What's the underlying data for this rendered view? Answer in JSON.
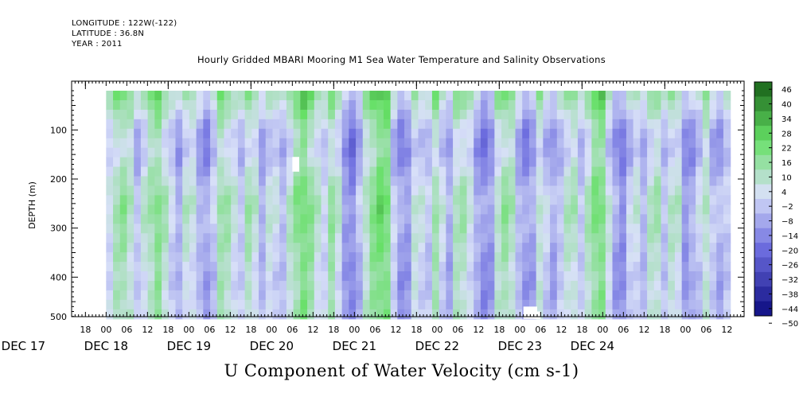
{
  "header": {
    "longitude": "LONGITUDE : 122W(-122)",
    "latitude": "LATITUDE : 36.8N",
    "year": "YEAR : 2011",
    "title": "Hourly Gridded MBARI Mooring M1 Sea Water Temperature and Salinity Observations"
  },
  "colors": {
    "strong_negative": "#0b0b80",
    "negative": "#6f6fe0",
    "near_zero": "#d8e0f8",
    "positive": "#66e066",
    "strong_positive": "#0a4a0a",
    "missing": "#ffffff"
  },
  "chart_data": {
    "type": "heatmap",
    "title": "U Component of Water Velocity (cm s-1)",
    "ylabel": "DEPTH (m)",
    "ylim": [
      500,
      20
    ],
    "y_inverted": true,
    "y_ticks": [
      100,
      200,
      300,
      400,
      500
    ],
    "x_hour_labels": [
      "18",
      "00",
      "06",
      "12",
      "18",
      "00",
      "06",
      "12",
      "18",
      "00",
      "06",
      "12",
      "18",
      "00",
      "06",
      "12",
      "18",
      "00",
      "06",
      "12",
      "18",
      "00",
      "06",
      "12",
      "18",
      "00",
      "06",
      "12",
      "18",
      "00",
      "06",
      "12"
    ],
    "x_hour_positions_h": [
      -6,
      0,
      6,
      12,
      18,
      24,
      30,
      36,
      42,
      48,
      54,
      60,
      66,
      72,
      78,
      84,
      90,
      96,
      102,
      108,
      114,
      120,
      126,
      132,
      138,
      144,
      150,
      156,
      162,
      168,
      174,
      180
    ],
    "x_day_labels": [
      "DEC 17",
      "DEC 18",
      "DEC 19",
      "DEC 20",
      "DEC 21",
      "DEC 22",
      "DEC 23",
      "DEC 24"
    ],
    "x_day_positions_h": [
      -24,
      0,
      24,
      48,
      72,
      96,
      120,
      141
    ],
    "xlim_hours_from_dec18": [
      -10,
      185
    ],
    "data_range_hours": [
      0,
      181
    ],
    "depth_range_m": [
      20,
      485
    ],
    "colorbar_levels": [
      46,
      40,
      34,
      28,
      22,
      16,
      10,
      4,
      -2,
      -8,
      -14,
      -20,
      -26,
      -32,
      -38,
      -44,
      -50
    ],
    "colorbar_range": [
      -50,
      50
    ],
    "time_bands": [
      {
        "t": 0,
        "u": -4
      },
      {
        "t": 3,
        "u": 8
      },
      {
        "t": 6,
        "u": 12
      },
      {
        "t": 9,
        "u": -6
      },
      {
        "t": 12,
        "u": 6
      },
      {
        "t": 15,
        "u": 14
      },
      {
        "t": 18,
        "u": 2
      },
      {
        "t": 21,
        "u": -10
      },
      {
        "t": 24,
        "u": 8
      },
      {
        "t": 27,
        "u": -8
      },
      {
        "t": 30,
        "u": -14
      },
      {
        "t": 33,
        "u": 10
      },
      {
        "t": 36,
        "u": 6
      },
      {
        "t": 39,
        "u": -6
      },
      {
        "t": 42,
        "u": 12
      },
      {
        "t": 45,
        "u": -10
      },
      {
        "t": 48,
        "u": 4
      },
      {
        "t": 51,
        "u": -8
      },
      {
        "t": 54,
        "u": 8
      },
      {
        "t": 57,
        "u": 18
      },
      {
        "t": 60,
        "u": 10
      },
      {
        "t": 63,
        "u": -4
      },
      {
        "t": 66,
        "u": 14
      },
      {
        "t": 69,
        "u": -12
      },
      {
        "t": 72,
        "u": -18
      },
      {
        "t": 75,
        "u": 4
      },
      {
        "t": 78,
        "u": 16
      },
      {
        "t": 81,
        "u": 22
      },
      {
        "t": 84,
        "u": -10
      },
      {
        "t": 87,
        "u": -16
      },
      {
        "t": 90,
        "u": 6
      },
      {
        "t": 93,
        "u": -8
      },
      {
        "t": 96,
        "u": 12
      },
      {
        "t": 99,
        "u": -14
      },
      {
        "t": 102,
        "u": 10
      },
      {
        "t": 105,
        "u": 4
      },
      {
        "t": 108,
        "u": -12
      },
      {
        "t": 111,
        "u": -18
      },
      {
        "t": 114,
        "u": 8
      },
      {
        "t": 117,
        "u": 12
      },
      {
        "t": 120,
        "u": -10
      },
      {
        "t": 123,
        "u": -16
      },
      {
        "t": 126,
        "u": 6
      },
      {
        "t": 129,
        "u": -12
      },
      {
        "t": 132,
        "u": -4
      },
      {
        "t": 135,
        "u": 10
      },
      {
        "t": 138,
        "u": -6
      },
      {
        "t": 141,
        "u": 14
      },
      {
        "t": 144,
        "u": 16
      },
      {
        "t": 147,
        "u": -10
      },
      {
        "t": 150,
        "u": -16
      },
      {
        "t": 153,
        "u": 4
      },
      {
        "t": 156,
        "u": -8
      },
      {
        "t": 159,
        "u": 12
      },
      {
        "t": 162,
        "u": -6
      },
      {
        "t": 165,
        "u": 10
      },
      {
        "t": 168,
        "u": -14
      },
      {
        "t": 171,
        "u": -8
      },
      {
        "t": 174,
        "u": 6
      },
      {
        "t": 177,
        "u": -12
      },
      {
        "t": 180,
        "u": -4
      }
    ],
    "depth_profile": [
      {
        "depth": 20,
        "u": 10
      },
      {
        "depth": 60,
        "u": 4
      },
      {
        "depth": 100,
        "u": -4
      },
      {
        "depth": 150,
        "u": -6
      },
      {
        "depth": 200,
        "u": 0
      },
      {
        "depth": 250,
        "u": 4
      },
      {
        "depth": 300,
        "u": 2
      },
      {
        "depth": 350,
        "u": 0
      },
      {
        "depth": 400,
        "u": -2
      },
      {
        "depth": 485,
        "u": 0
      }
    ],
    "missing_regions": [
      {
        "t0": 54,
        "t1": 56,
        "d0": 155,
        "d1": 185
      },
      {
        "t0": 121,
        "t1": 125,
        "d0": 460,
        "d1": 485
      },
      {
        "t0": 124,
        "t1": 126,
        "d0": 470,
        "d1": 485
      }
    ]
  }
}
